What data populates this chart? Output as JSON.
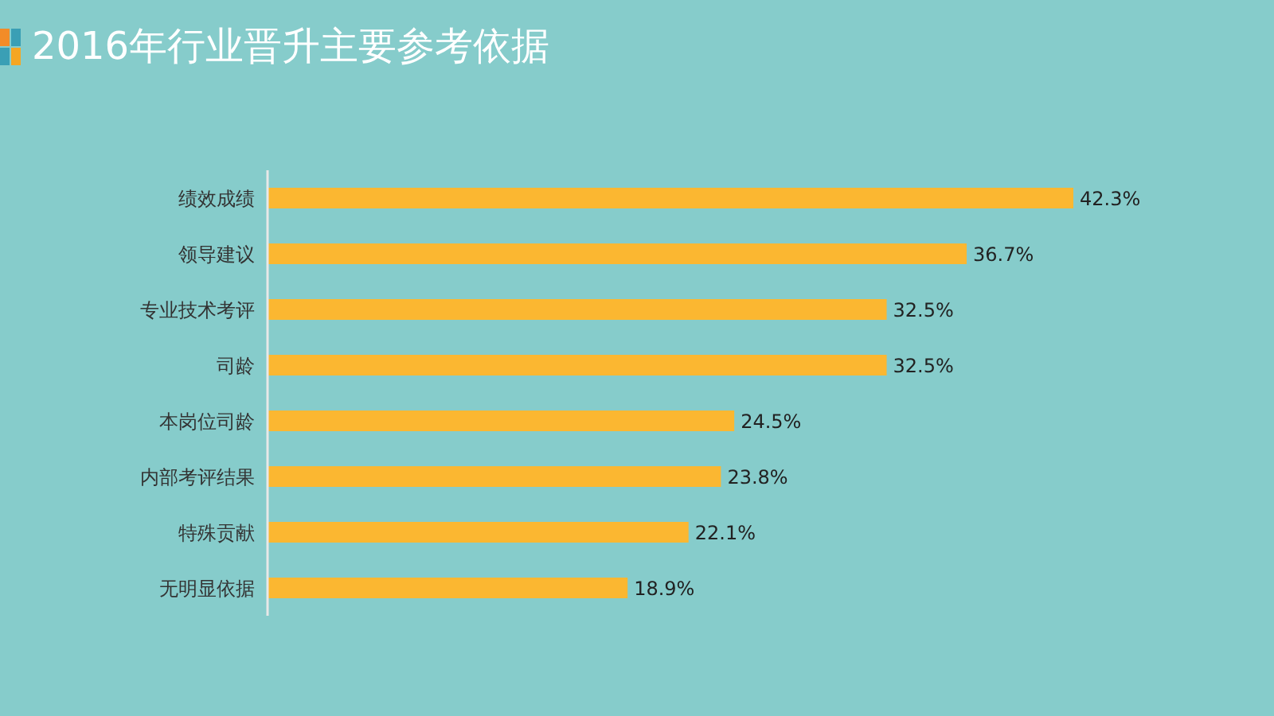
{
  "chart_data": {
    "type": "bar",
    "orientation": "horizontal",
    "title": "2016年行业晋升主要参考依据",
    "categories": [
      "绩效成绩",
      "领导建议",
      "专业技术考评",
      "司龄",
      "本岗位司龄",
      "内部考评结果",
      "特殊贡献",
      "无明显依据"
    ],
    "values": [
      42.3,
      36.7,
      32.5,
      32.5,
      24.5,
      23.8,
      22.1,
      18.9
    ],
    "value_labels": [
      "42.3%",
      "36.7%",
      "32.5%",
      "32.5%",
      "24.5%",
      "23.8%",
      "22.1%",
      "18.9%"
    ],
    "color": "#fbb731"
  }
}
